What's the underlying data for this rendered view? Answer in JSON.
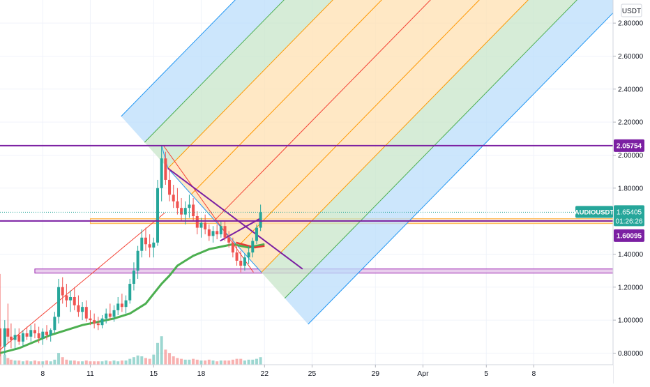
{
  "chart_data": {
    "type": "candlestick",
    "symbol": "AUDIOUSDT",
    "currency": "USDT",
    "countdown": "01:26:26",
    "y_axis": {
      "ticks": [
        "0.80000",
        "1.00000",
        "1.20000",
        "1.40000",
        "1.60000",
        "1.80000",
        "2.00000",
        "2.20000",
        "2.40000",
        "2.60000",
        "2.80000"
      ],
      "tick_values": [
        0.8,
        1.0,
        1.2,
        1.4,
        1.6,
        1.8,
        2.0,
        2.2,
        2.4,
        2.6,
        2.8
      ],
      "range": [
        0.73,
        2.94
      ]
    },
    "x_axis": {
      "ticks": [
        {
          "label": "8",
          "day": 8
        },
        {
          "label": "11",
          "day": 11
        },
        {
          "label": "15",
          "day": 15
        },
        {
          "label": "18",
          "day": 18
        },
        {
          "label": "22",
          "day": 22
        },
        {
          "label": "25",
          "day": 25
        },
        {
          "label": "29",
          "day": 29
        },
        {
          "label": "Apr",
          "day": 32
        },
        {
          "label": "5",
          "day": 36
        },
        {
          "label": "8",
          "day": 39
        }
      ],
      "range": [
        5.3,
        44.0
      ]
    },
    "price_labels": {
      "last": {
        "value": "1.65405",
        "color": "#26a69a"
      },
      "upper_level": {
        "value": "2.05754",
        "color": "#7b1fa2"
      },
      "lower_level": {
        "value": "1.60095",
        "color": "#7b1fa2"
      }
    },
    "levels": {
      "upper": 2.05754,
      "lower": 1.60095,
      "last": 1.65405
    },
    "zones": {
      "orange": {
        "from_day": 11,
        "y_top": 1.615,
        "y_bottom": 1.585,
        "color": "#ffe0b2"
      },
      "purple": {
        "from_day": 7.5,
        "y_top": 1.31,
        "y_bottom": 1.285,
        "color": "#e1bee7"
      }
    },
    "pitchfork": {
      "pivot": {
        "day": 15.5,
        "price": 2.06
      },
      "a": {
        "day": 15.9,
        "price": 1.92
      },
      "b": {
        "day": 21.8,
        "price": 1.29
      },
      "median_slope": 0.098,
      "levels": [
        -1,
        -0.75,
        -0.5,
        -0.25,
        0,
        0.25,
        0.5,
        0.75,
        1
      ],
      "colors": {
        "outer": "#2196f3",
        "mid": "#4caf50",
        "inner": "#ff9800",
        "median": "#f44336"
      }
    },
    "trendlines": [
      {
        "from": [
          5.3,
          0.82
        ],
        "to": [
          15.7,
          1.65
        ],
        "color": "#f44336"
      },
      {
        "from": [
          15.6,
          2.06
        ],
        "to": [
          21.3,
          1.29
        ],
        "color": "#f44336"
      },
      {
        "from": [
          15.9,
          1.92
        ],
        "to": [
          24.4,
          1.31
        ],
        "color": "#7b1fa2"
      },
      {
        "from": [
          19.2,
          1.48
        ],
        "to": [
          21.8,
          1.62
        ],
        "color": "#7b1fa2"
      }
    ],
    "moving_average": {
      "color": "#4caf50",
      "points": [
        [
          5.3,
          0.8
        ],
        [
          6.5,
          0.83
        ],
        [
          7.5,
          0.87
        ],
        [
          8.5,
          0.91
        ],
        [
          9.5,
          0.94
        ],
        [
          10.5,
          0.97
        ],
        [
          11.5,
          0.99
        ],
        [
          12.5,
          1.01
        ],
        [
          13.5,
          1.04
        ],
        [
          14.5,
          1.1
        ],
        [
          15.0,
          1.16
        ],
        [
          15.5,
          1.22
        ],
        [
          16.0,
          1.27
        ],
        [
          16.5,
          1.33
        ],
        [
          17.0,
          1.36
        ],
        [
          17.5,
          1.39
        ],
        [
          18.0,
          1.41
        ],
        [
          18.5,
          1.43
        ],
        [
          19.0,
          1.44
        ],
        [
          19.5,
          1.45
        ],
        [
          20.0,
          1.46
        ],
        [
          20.5,
          1.45
        ],
        [
          21.0,
          1.44
        ],
        [
          21.5,
          1.45
        ],
        [
          22.0,
          1.46
        ]
      ]
    },
    "moving_average_short": {
      "color": "#e53935",
      "points": [
        [
          20.2,
          1.47
        ],
        [
          20.8,
          1.455
        ],
        [
          21.4,
          1.44
        ],
        [
          22.0,
          1.45
        ]
      ]
    },
    "candles": [
      [
        5.3,
        0.95,
        1.28,
        0.78,
        0.84
      ],
      [
        5.6,
        0.84,
        1.0,
        0.79,
        0.95
      ],
      [
        5.8,
        0.95,
        1.1,
        0.86,
        0.9
      ],
      [
        6.0,
        0.9,
        0.98,
        0.83,
        0.88
      ],
      [
        6.25,
        0.88,
        0.95,
        0.82,
        0.91
      ],
      [
        6.5,
        0.91,
        0.95,
        0.85,
        0.87
      ],
      [
        6.75,
        0.87,
        0.94,
        0.84,
        0.92
      ],
      [
        7.0,
        0.92,
        0.96,
        0.88,
        0.9
      ],
      [
        7.25,
        0.9,
        0.97,
        0.87,
        0.94
      ],
      [
        7.5,
        0.94,
        0.98,
        0.89,
        0.92
      ],
      [
        7.75,
        0.92,
        0.96,
        0.86,
        0.89
      ],
      [
        8.0,
        0.89,
        0.95,
        0.85,
        0.93
      ],
      [
        8.25,
        0.93,
        0.97,
        0.88,
        0.91
      ],
      [
        8.5,
        0.91,
        0.95,
        0.87,
        0.94
      ],
      [
        8.75,
        0.94,
        1.05,
        0.92,
        1.02
      ],
      [
        9.0,
        1.02,
        1.25,
        0.98,
        1.2
      ],
      [
        9.25,
        1.2,
        1.26,
        1.1,
        1.15
      ],
      [
        9.5,
        1.15,
        1.22,
        1.08,
        1.12
      ],
      [
        9.75,
        1.12,
        1.18,
        1.05,
        1.14
      ],
      [
        10.0,
        1.14,
        1.2,
        1.06,
        1.09
      ],
      [
        10.25,
        1.09,
        1.15,
        1.02,
        1.05
      ],
      [
        10.5,
        1.05,
        1.11,
        1.0,
        1.08
      ],
      [
        10.75,
        1.08,
        1.12,
        0.99,
        1.01
      ],
      [
        11.0,
        1.01,
        1.06,
        0.97,
        1.0
      ],
      [
        11.25,
        1.0,
        1.04,
        0.95,
        0.98
      ],
      [
        11.5,
        0.98,
        1.02,
        0.94,
        0.97
      ],
      [
        11.75,
        0.97,
        1.03,
        0.95,
        1.01
      ],
      [
        12.0,
        1.01,
        1.07,
        0.98,
        1.04
      ],
      [
        12.25,
        1.04,
        1.1,
        1.0,
        1.02
      ],
      [
        12.5,
        1.02,
        1.09,
        0.99,
        1.06
      ],
      [
        12.75,
        1.06,
        1.14,
        1.03,
        1.1
      ],
      [
        13.0,
        1.1,
        1.16,
        1.05,
        1.08
      ],
      [
        13.25,
        1.08,
        1.15,
        1.04,
        1.12
      ],
      [
        13.5,
        1.12,
        1.25,
        1.1,
        1.22
      ],
      [
        13.75,
        1.22,
        1.35,
        1.18,
        1.3
      ],
      [
        14.0,
        1.3,
        1.45,
        1.25,
        1.42
      ],
      [
        14.25,
        1.42,
        1.55,
        1.38,
        1.5
      ],
      [
        14.5,
        1.5,
        1.56,
        1.42,
        1.46
      ],
      [
        14.75,
        1.46,
        1.52,
        1.38,
        1.44
      ],
      [
        15.0,
        1.44,
        1.5,
        1.38,
        1.47
      ],
      [
        15.25,
        1.47,
        1.85,
        1.45,
        1.8
      ],
      [
        15.5,
        1.8,
        2.06,
        1.72,
        1.98
      ],
      [
        15.75,
        1.98,
        2.02,
        1.82,
        1.85
      ],
      [
        16.0,
        1.85,
        1.92,
        1.72,
        1.76
      ],
      [
        16.25,
        1.76,
        1.82,
        1.68,
        1.72
      ],
      [
        16.5,
        1.72,
        1.8,
        1.64,
        1.68
      ],
      [
        16.75,
        1.68,
        1.74,
        1.6,
        1.64
      ],
      [
        17.0,
        1.64,
        1.72,
        1.58,
        1.68
      ],
      [
        17.25,
        1.68,
        1.76,
        1.62,
        1.7
      ],
      [
        17.5,
        1.7,
        1.74,
        1.6,
        1.63
      ],
      [
        17.75,
        1.63,
        1.66,
        1.52,
        1.56
      ],
      [
        18.0,
        1.56,
        1.62,
        1.5,
        1.59
      ],
      [
        18.25,
        1.59,
        1.64,
        1.52,
        1.55
      ],
      [
        18.5,
        1.55,
        1.58,
        1.48,
        1.51
      ],
      [
        18.75,
        1.51,
        1.57,
        1.47,
        1.54
      ],
      [
        19.0,
        1.54,
        1.58,
        1.49,
        1.52
      ],
      [
        19.25,
        1.52,
        1.6,
        1.5,
        1.57
      ],
      [
        19.5,
        1.57,
        1.6,
        1.48,
        1.5
      ],
      [
        19.75,
        1.5,
        1.54,
        1.44,
        1.47
      ],
      [
        20.0,
        1.47,
        1.5,
        1.38,
        1.41
      ],
      [
        20.25,
        1.41,
        1.46,
        1.33,
        1.36
      ],
      [
        20.5,
        1.36,
        1.42,
        1.29,
        1.33
      ],
      [
        20.75,
        1.33,
        1.4,
        1.3,
        1.38
      ],
      [
        21.0,
        1.38,
        1.45,
        1.34,
        1.41
      ],
      [
        21.25,
        1.41,
        1.5,
        1.38,
        1.48
      ],
      [
        21.5,
        1.48,
        1.58,
        1.46,
        1.56
      ],
      [
        21.75,
        1.56,
        1.7,
        1.54,
        1.654
      ]
    ],
    "volume": [
      [
        5.3,
        30
      ],
      [
        5.6,
        12
      ],
      [
        5.8,
        8
      ],
      [
        6.0,
        6
      ],
      [
        6.25,
        5
      ],
      [
        6.5,
        5
      ],
      [
        6.75,
        4
      ],
      [
        7.0,
        5
      ],
      [
        7.25,
        4
      ],
      [
        7.5,
        5
      ],
      [
        7.75,
        4
      ],
      [
        8.0,
        4
      ],
      [
        8.25,
        5
      ],
      [
        8.5,
        4
      ],
      [
        8.75,
        6
      ],
      [
        9.0,
        14
      ],
      [
        9.25,
        9
      ],
      [
        9.5,
        6
      ],
      [
        9.75,
        5
      ],
      [
        10.0,
        5
      ],
      [
        10.25,
        4
      ],
      [
        10.5,
        4
      ],
      [
        10.75,
        5
      ],
      [
        11.0,
        4
      ],
      [
        11.25,
        4
      ],
      [
        11.5,
        4
      ],
      [
        11.75,
        4
      ],
      [
        12.0,
        5
      ],
      [
        12.25,
        4
      ],
      [
        12.5,
        5
      ],
      [
        12.75,
        4
      ],
      [
        13.0,
        5
      ],
      [
        13.25,
        5
      ],
      [
        13.5,
        7
      ],
      [
        13.75,
        9
      ],
      [
        14.0,
        11
      ],
      [
        14.25,
        10
      ],
      [
        14.5,
        8
      ],
      [
        14.75,
        7
      ],
      [
        15.0,
        12
      ],
      [
        15.25,
        26
      ],
      [
        15.5,
        34
      ],
      [
        15.75,
        18
      ],
      [
        16.0,
        14
      ],
      [
        16.25,
        10
      ],
      [
        16.5,
        8
      ],
      [
        16.75,
        7
      ],
      [
        17.0,
        6
      ],
      [
        17.25,
        6
      ],
      [
        17.5,
        7
      ],
      [
        17.75,
        6
      ],
      [
        18.0,
        5
      ],
      [
        18.25,
        5
      ],
      [
        18.5,
        6
      ],
      [
        18.75,
        5
      ],
      [
        19.0,
        4
      ],
      [
        19.25,
        5
      ],
      [
        19.5,
        5
      ],
      [
        19.75,
        5
      ],
      [
        20.0,
        6
      ],
      [
        20.25,
        7
      ],
      [
        20.5,
        7
      ],
      [
        20.75,
        5
      ],
      [
        21.0,
        6
      ],
      [
        21.25,
        6
      ],
      [
        21.5,
        7
      ],
      [
        21.75,
        9
      ]
    ]
  }
}
